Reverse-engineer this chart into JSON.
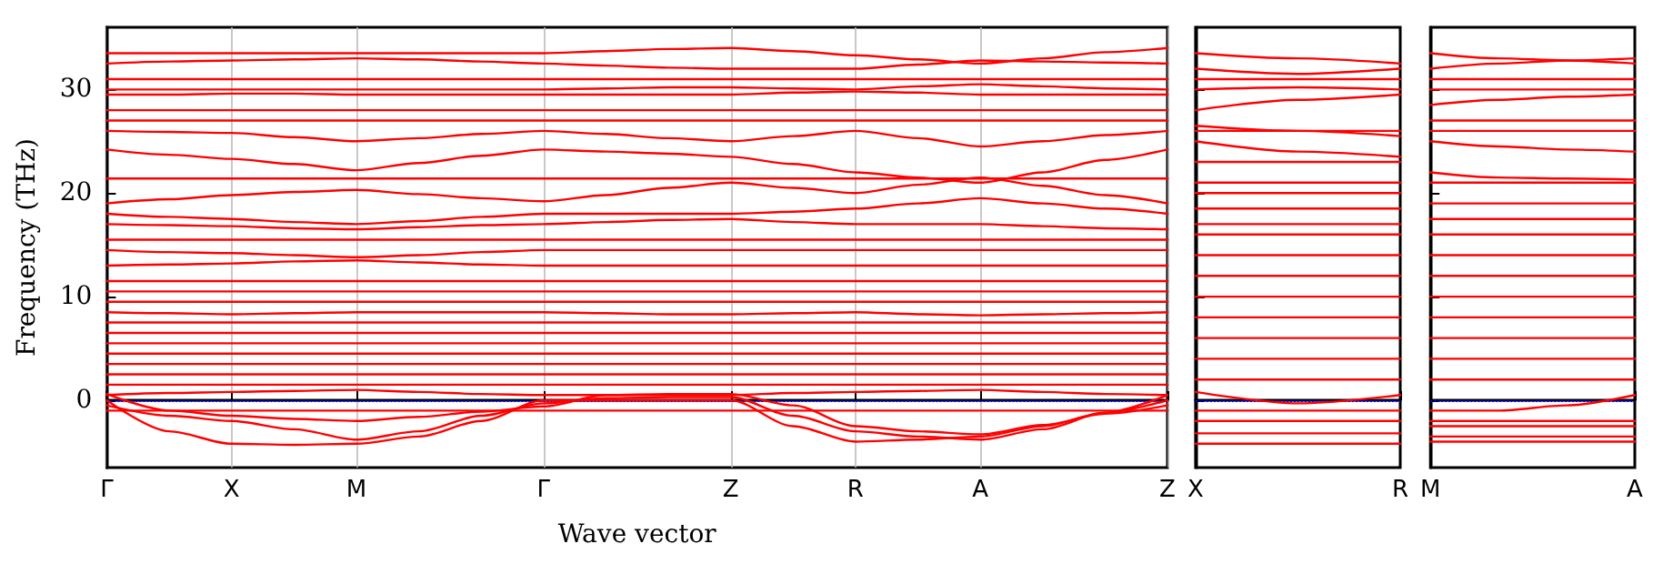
{
  "chart_data": [
    {
      "type": "line",
      "xlabel": "Wave vector",
      "ylabel": "Frequency (THz)",
      "categories": [
        "Γ",
        null,
        "X",
        null,
        "M",
        null,
        null,
        "Γ",
        null,
        null,
        "Z",
        null,
        "R",
        null,
        "A",
        null,
        null,
        "Z"
      ],
      "ylim": [
        -6.5,
        36
      ],
      "yticks": [
        0,
        10,
        20,
        30
      ],
      "grid": "x",
      "marker": "none",
      "line_style": "solid",
      "ref_lines": [
        {
          "axis": "y",
          "value": 0,
          "color": "#0000ff",
          "line_style": "dotted"
        }
      ],
      "series": [
        {
          "color": "#ff0000",
          "values": [
            33.5,
            33.5,
            33.5,
            33.5,
            33.5,
            33.5,
            33.5,
            33.5,
            33.7,
            33.9,
            34,
            33.7,
            33.3,
            32.9,
            32.5,
            33,
            33.6,
            34
          ]
        },
        {
          "color": "#ff0000",
          "values": [
            32.5,
            32.7,
            32.8,
            32.9,
            33,
            32.9,
            32.7,
            32.5,
            32.3,
            32.1,
            32,
            32,
            32,
            32.4,
            32.8,
            32.7,
            32.6,
            32.5
          ]
        },
        {
          "color": "#ff0000",
          "values": [
            31,
            31,
            31,
            31,
            31,
            31,
            31,
            31,
            31,
            31,
            31,
            31,
            31,
            31,
            31,
            31,
            31,
            31
          ]
        },
        {
          "color": "#ff0000",
          "values": [
            30,
            30,
            30,
            30,
            30,
            30,
            30,
            30,
            30.1,
            30.2,
            30.2,
            30.1,
            30,
            30.3,
            30.5,
            30.3,
            30.1,
            30
          ]
        },
        {
          "color": "#ff0000",
          "values": [
            29.5,
            29.5,
            29.6,
            29.6,
            29.5,
            29.5,
            29.5,
            29.5,
            29.5,
            29.5,
            29.5,
            29.7,
            29.8,
            29.7,
            29.5,
            29.5,
            29.5,
            29.5
          ]
        },
        {
          "color": "#ff0000",
          "values": [
            28,
            28,
            28,
            28,
            28,
            28,
            28,
            28,
            28,
            28,
            28,
            28,
            28,
            28,
            28,
            28,
            28,
            28
          ]
        },
        {
          "color": "#ff0000",
          "values": [
            27,
            27,
            27,
            27,
            27,
            27,
            27,
            27,
            27,
            27,
            27,
            27,
            27,
            27,
            27,
            27,
            27,
            27
          ]
        },
        {
          "color": "#ff0000",
          "values": [
            26,
            25.9,
            25.8,
            25.4,
            25,
            25.3,
            25.7,
            26,
            25.7,
            25.3,
            25,
            25.5,
            26,
            25.3,
            24.5,
            25,
            25.6,
            26
          ]
        },
        {
          "color": "#ff0000",
          "values": [
            24.2,
            23.7,
            23.3,
            22.8,
            22.2,
            22.9,
            23.6,
            24.2,
            24,
            23.8,
            23.5,
            22.8,
            22,
            21.5,
            21,
            22,
            23.2,
            24.2
          ]
        },
        {
          "color": "#ff0000",
          "values": [
            21.4,
            21.4,
            21.4,
            21.4,
            21.4,
            21.4,
            21.4,
            21.4,
            21.4,
            21.4,
            21.4,
            21.4,
            21.4,
            21.4,
            21.4,
            21.4,
            21.4,
            21.4
          ]
        },
        {
          "color": "#ff0000",
          "values": [
            19,
            19.4,
            19.8,
            20.1,
            20.3,
            19.9,
            19.5,
            19.2,
            19.8,
            20.5,
            21,
            20.5,
            20,
            20.8,
            21.5,
            20.7,
            19.8,
            19
          ]
        },
        {
          "color": "#ff0000",
          "values": [
            18,
            17.7,
            17.5,
            17.2,
            17,
            17.3,
            17.7,
            18,
            18,
            18,
            18,
            18.2,
            18.5,
            19,
            19.5,
            19,
            18.5,
            18
          ]
        },
        {
          "color": "#ff0000",
          "values": [
            17,
            16.9,
            16.8,
            16.6,
            16.5,
            16.7,
            16.9,
            17,
            17.2,
            17.4,
            17.5,
            17.2,
            17,
            17,
            17,
            16.8,
            16.6,
            16.5
          ]
        },
        {
          "color": "#ff0000",
          "values": [
            15.5,
            15.5,
            15.5,
            15.5,
            15.5,
            15.5,
            15.5,
            15.5,
            15.5,
            15.5,
            15.5,
            15.5,
            15.5,
            15.5,
            15.5,
            15.5,
            15.5,
            15.5
          ]
        },
        {
          "color": "#ff0000",
          "values": [
            14.5,
            14.3,
            14.2,
            14,
            13.8,
            14,
            14.3,
            14.5,
            14.5,
            14.5,
            14.5,
            14.5,
            14.5,
            14.5,
            14.5,
            14.5,
            14.5,
            14.5
          ]
        },
        {
          "color": "#ff0000",
          "values": [
            13,
            13.1,
            13.2,
            13.4,
            13.5,
            13.3,
            13.1,
            13,
            13,
            13,
            13,
            13,
            13,
            13,
            13,
            13,
            13,
            13
          ]
        },
        {
          "color": "#ff0000",
          "values": [
            11.5,
            11.5,
            11.5,
            11.5,
            11.5,
            11.5,
            11.5,
            11.5,
            11.5,
            11.5,
            11.5,
            11.5,
            11.5,
            11.5,
            11.5,
            11.5,
            11.5,
            11.5
          ]
        },
        {
          "color": "#ff0000",
          "values": [
            10.5,
            10.5,
            10.5,
            10.5,
            10.5,
            10.5,
            10.5,
            10.5,
            10.5,
            10.5,
            10.5,
            10.5,
            10.5,
            10.5,
            10.5,
            10.5,
            10.5,
            10.5
          ]
        },
        {
          "color": "#ff0000",
          "values": [
            9.5,
            9.5,
            9.5,
            9.5,
            9.5,
            9.5,
            9.5,
            9.5,
            9.5,
            9.5,
            9.5,
            9.5,
            9.5,
            9.5,
            9.5,
            9.5,
            9.5,
            9.5
          ]
        },
        {
          "color": "#ff0000",
          "values": [
            8.5,
            8.4,
            8.3,
            8.4,
            8.5,
            8.5,
            8.5,
            8.5,
            8.4,
            8.3,
            8.3,
            8.4,
            8.5,
            8.3,
            8.2,
            8.3,
            8.4,
            8.5
          ]
        },
        {
          "color": "#ff0000",
          "values": [
            7.5,
            7.5,
            7.5,
            7.5,
            7.5,
            7.5,
            7.5,
            7.5,
            7.5,
            7.5,
            7.5,
            7.5,
            7.5,
            7.5,
            7.5,
            7.5,
            7.5,
            7.5
          ]
        },
        {
          "color": "#ff0000",
          "values": [
            6.5,
            6.5,
            6.5,
            6.5,
            6.5,
            6.5,
            6.5,
            6.5,
            6.5,
            6.5,
            6.5,
            6.5,
            6.5,
            6.5,
            6.5,
            6.5,
            6.5,
            6.5
          ]
        },
        {
          "color": "#ff0000",
          "values": [
            5.5,
            5.5,
            5.5,
            5.5,
            5.5,
            5.5,
            5.5,
            5.5,
            5.5,
            5.5,
            5.5,
            5.5,
            5.5,
            5.5,
            5.5,
            5.5,
            5.5,
            5.5
          ]
        },
        {
          "color": "#ff0000",
          "values": [
            4.5,
            4.5,
            4.5,
            4.5,
            4.5,
            4.5,
            4.5,
            4.5,
            4.5,
            4.5,
            4.5,
            4.5,
            4.5,
            4.5,
            4.5,
            4.5,
            4.5,
            4.5
          ]
        },
        {
          "color": "#ff0000",
          "values": [
            3.5,
            3.5,
            3.5,
            3.5,
            3.5,
            3.5,
            3.5,
            3.5,
            3.5,
            3.5,
            3.5,
            3.5,
            3.5,
            3.5,
            3.5,
            3.5,
            3.5,
            3.5
          ]
        },
        {
          "color": "#ff0000",
          "values": [
            2.5,
            2.5,
            2.5,
            2.5,
            2.5,
            2.5,
            2.5,
            2.5,
            2.5,
            2.5,
            2.5,
            2.5,
            2.5,
            2.5,
            2.5,
            2.5,
            2.5,
            2.5
          ]
        },
        {
          "color": "#ff0000",
          "values": [
            1.5,
            1.5,
            1.5,
            1.5,
            1.5,
            1.5,
            1.5,
            1.5,
            1.5,
            1.5,
            1.5,
            1.5,
            1.5,
            1.5,
            1.5,
            1.5,
            1.5,
            1.5
          ]
        },
        {
          "color": "#ff0000",
          "values": [
            0.5,
            0.7,
            0.8,
            0.9,
            1,
            0.8,
            0.6,
            0.5,
            0.5,
            0.5,
            0.5,
            0.7,
            0.8,
            0.9,
            1,
            0.8,
            0.6,
            0.5
          ]
        },
        {
          "color": "#ff0000",
          "values": [
            -1,
            -1,
            -1,
            -1,
            -1,
            -1,
            -1,
            -1,
            -1,
            -1,
            -1,
            -1,
            -1,
            -1,
            -1,
            -1,
            -1,
            -1
          ]
        },
        {
          "color": "#ff0000",
          "values": [
            0,
            -3,
            -4.2,
            -4.3,
            -4.2,
            -3.5,
            -2,
            0,
            0,
            0,
            0,
            -2.5,
            -4,
            -3.8,
            -3.5,
            -2.5,
            -1.2,
            0
          ]
        },
        {
          "color": "#ff0000",
          "values": [
            -0.5,
            -1.5,
            -2,
            -2.8,
            -3.8,
            -3,
            -1.5,
            -0.3,
            0.2,
            0.3,
            0.3,
            -1.5,
            -3,
            -3.5,
            -3.8,
            -2.8,
            -1.2,
            0.5
          ]
        },
        {
          "color": "#ff0000",
          "values": [
            0.6,
            -1,
            -1.5,
            -1.8,
            -2,
            -1.6,
            -1.1,
            -0.6,
            0.5,
            0.6,
            0.6,
            -0.5,
            -2.5,
            -3,
            -3.3,
            -2.4,
            -1.3,
            -0.5
          ]
        }
      ]
    },
    {
      "type": "line",
      "categories": [
        "X",
        null,
        "R"
      ],
      "ylim": [
        -6.5,
        36
      ],
      "yticks": [
        0,
        10,
        20,
        30
      ],
      "tick_labels": "x",
      "marker": "none",
      "line_style": "solid",
      "ref_lines": [
        {
          "axis": "y",
          "value": 0,
          "color": "#0000ff",
          "line_style": "dotted"
        }
      ],
      "series": [
        {
          "color": "#ff0000",
          "values": [
            33.5,
            33,
            32.5
          ]
        },
        {
          "color": "#ff0000",
          "values": [
            32,
            31.5,
            32
          ]
        },
        {
          "color": "#ff0000",
          "values": [
            31,
            31,
            31
          ]
        },
        {
          "color": "#ff0000",
          "values": [
            30,
            30.2,
            30
          ]
        },
        {
          "color": "#ff0000",
          "values": [
            28,
            29,
            29.5
          ]
        },
        {
          "color": "#ff0000",
          "values": [
            26.5,
            26,
            25.5
          ]
        },
        {
          "color": "#ff0000",
          "values": [
            26,
            26,
            26
          ]
        },
        {
          "color": "#ff0000",
          "values": [
            25,
            24,
            23.5
          ]
        },
        {
          "color": "#ff0000",
          "values": [
            23,
            23,
            23
          ]
        },
        {
          "color": "#ff0000",
          "values": [
            21,
            21,
            21
          ]
        },
        {
          "color": "#ff0000",
          "values": [
            20,
            20,
            20
          ]
        },
        {
          "color": "#ff0000",
          "values": [
            18.5,
            18.5,
            18.5
          ]
        },
        {
          "color": "#ff0000",
          "values": [
            17,
            17,
            17
          ]
        },
        {
          "color": "#ff0000",
          "values": [
            16,
            16,
            16
          ]
        },
        {
          "color": "#ff0000",
          "values": [
            14,
            14,
            14
          ]
        },
        {
          "color": "#ff0000",
          "values": [
            12,
            12,
            12
          ]
        },
        {
          "color": "#ff0000",
          "values": [
            10,
            10,
            10
          ]
        },
        {
          "color": "#ff0000",
          "values": [
            8,
            8,
            8
          ]
        },
        {
          "color": "#ff0000",
          "values": [
            6,
            6,
            6
          ]
        },
        {
          "color": "#ff0000",
          "values": [
            4,
            4,
            4
          ]
        },
        {
          "color": "#ff0000",
          "values": [
            2,
            2,
            2
          ]
        },
        {
          "color": "#ff0000",
          "values": [
            0.8,
            -0.3,
            0.5
          ]
        },
        {
          "color": "#ff0000",
          "values": [
            -1,
            -1,
            -1
          ]
        },
        {
          "color": "#ff0000",
          "values": [
            -2,
            -2,
            -2
          ]
        },
        {
          "color": "#ff0000",
          "values": [
            -3.2,
            -3.2,
            -3.2
          ]
        },
        {
          "color": "#ff0000",
          "values": [
            -4.2,
            -4.2,
            -4.2
          ]
        }
      ]
    },
    {
      "type": "line",
      "categories": [
        "M",
        null,
        null,
        "A"
      ],
      "ylim": [
        -6.5,
        36
      ],
      "yticks": [
        0,
        10,
        20,
        30
      ],
      "tick_labels": "x",
      "marker": "none",
      "line_style": "solid",
      "ref_lines": [
        {
          "axis": "y",
          "value": 0,
          "color": "#0000ff",
          "line_style": "dotted"
        }
      ],
      "series": [
        {
          "color": "#ff0000",
          "values": [
            33.5,
            33,
            32.8,
            32.5
          ]
        },
        {
          "color": "#ff0000",
          "values": [
            32,
            32.5,
            32.8,
            33
          ]
        },
        {
          "color": "#ff0000",
          "values": [
            31,
            31,
            31,
            31
          ]
        },
        {
          "color": "#ff0000",
          "values": [
            30,
            30,
            30,
            30
          ]
        },
        {
          "color": "#ff0000",
          "values": [
            28.5,
            29,
            29.3,
            29.5
          ]
        },
        {
          "color": "#ff0000",
          "values": [
            27,
            27,
            27,
            27
          ]
        },
        {
          "color": "#ff0000",
          "values": [
            26,
            26,
            26,
            26
          ]
        },
        {
          "color": "#ff0000",
          "values": [
            25,
            24.5,
            24.2,
            24
          ]
        },
        {
          "color": "#ff0000",
          "values": [
            22,
            21.5,
            21.4,
            21.3
          ]
        },
        {
          "color": "#ff0000",
          "values": [
            21,
            21,
            21,
            21
          ]
        },
        {
          "color": "#ff0000",
          "values": [
            19,
            19,
            19,
            19
          ]
        },
        {
          "color": "#ff0000",
          "values": [
            17.5,
            17.5,
            17.5,
            17.5
          ]
        },
        {
          "color": "#ff0000",
          "values": [
            16,
            16,
            16,
            16
          ]
        },
        {
          "color": "#ff0000",
          "values": [
            14,
            14,
            14,
            14
          ]
        },
        {
          "color": "#ff0000",
          "values": [
            12,
            12,
            12,
            12
          ]
        },
        {
          "color": "#ff0000",
          "values": [
            10,
            10,
            10,
            10
          ]
        },
        {
          "color": "#ff0000",
          "values": [
            8,
            8,
            8,
            8
          ]
        },
        {
          "color": "#ff0000",
          "values": [
            6,
            6,
            6,
            6
          ]
        },
        {
          "color": "#ff0000",
          "values": [
            4,
            4,
            4,
            4
          ]
        },
        {
          "color": "#ff0000",
          "values": [
            2,
            2,
            2,
            2
          ]
        },
        {
          "color": "#ff0000",
          "values": [
            -1,
            -1,
            -0.5,
            0.5
          ]
        },
        {
          "color": "#ff0000",
          "values": [
            -2,
            -2,
            -2,
            -2
          ]
        },
        {
          "color": "#ff0000",
          "values": [
            -2.5,
            -2.5,
            -2.5,
            -2.5
          ]
        },
        {
          "color": "#ff0000",
          "values": [
            -3.5,
            -3.5,
            -3.5,
            -3.5
          ]
        },
        {
          "color": "#ff0000",
          "values": [
            -4,
            -4,
            -4,
            -4
          ]
        }
      ]
    }
  ]
}
